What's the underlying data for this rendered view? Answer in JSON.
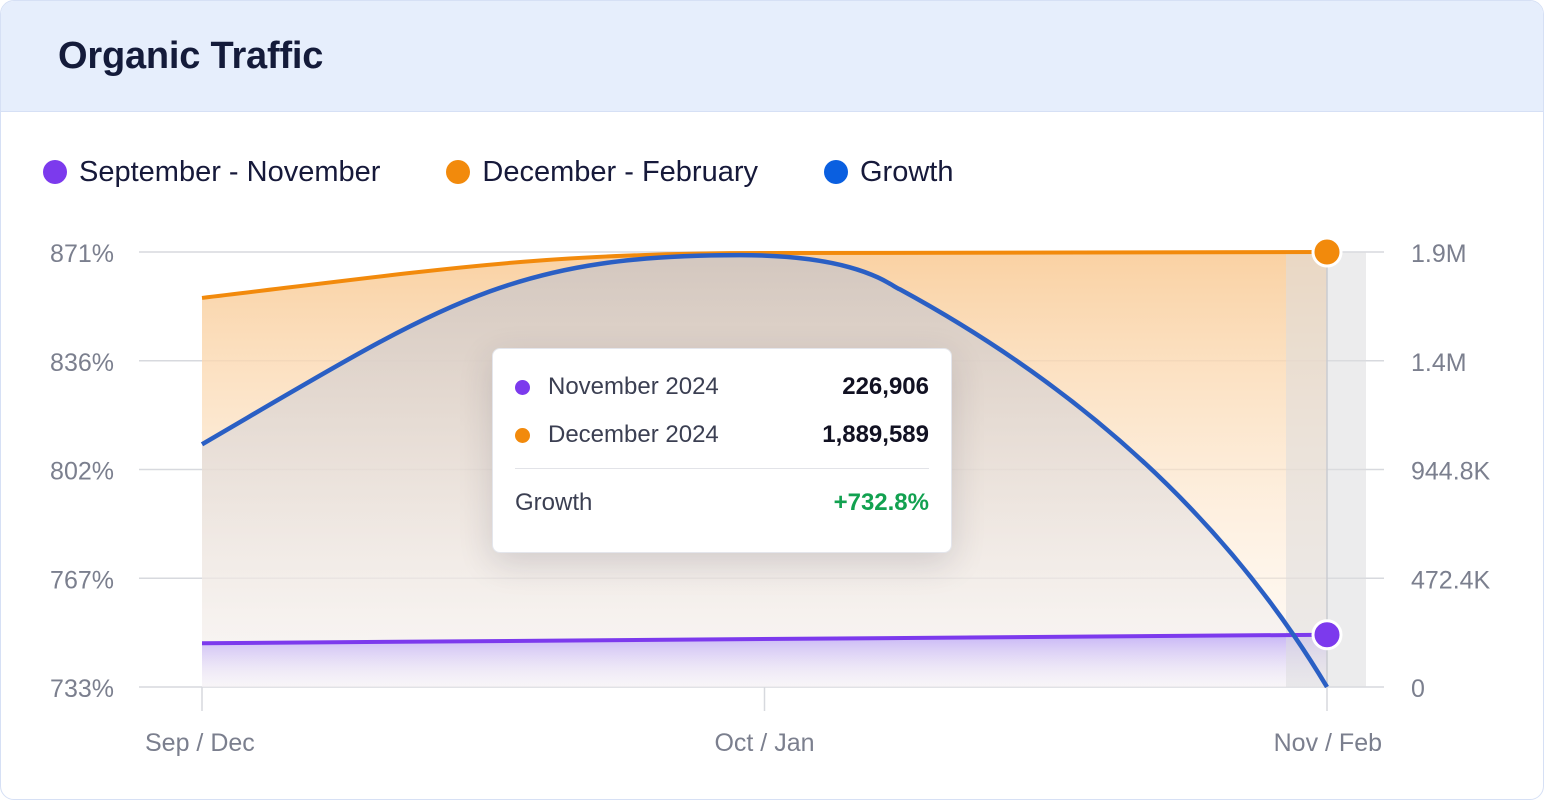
{
  "header": {
    "title": "Organic Traffic"
  },
  "legend": [
    {
      "label": "September - November",
      "color": "#7c3aed"
    },
    {
      "label": "December - February",
      "color": "#f28a0c"
    },
    {
      "label": "Growth",
      "color": "#0a5fe0"
    }
  ],
  "tooltip": {
    "rows": [
      {
        "label": "November 2024",
        "value": "226,906",
        "color": "#7c3aed"
      },
      {
        "label": "December 2024",
        "value": "1,889,589",
        "color": "#f28a0c"
      }
    ],
    "growth_label": "Growth",
    "growth_value": "+732.8%",
    "growth_color": "#12a150"
  },
  "chart_data": {
    "type": "area",
    "categories": [
      "Sep / Dec",
      "Oct / Jan",
      "Nov / Feb"
    ],
    "left_axis": {
      "ticks": [
        "871%",
        "836%",
        "802%",
        "767%",
        "733%"
      ],
      "ylim": [
        733,
        871
      ]
    },
    "right_axis": {
      "ticks": [
        "1.9M",
        "1.4M",
        "944.8K",
        "472.4K",
        "0"
      ],
      "ylim": [
        0,
        1889589
      ]
    },
    "series": [
      {
        "name": "September - November",
        "axis": "right",
        "color": "#7c3aed",
        "values": [
          190000,
          210000,
          226906
        ]
      },
      {
        "name": "December - February",
        "axis": "right",
        "color": "#f28a0c",
        "values": [
          1690000,
          1885000,
          1889589
        ]
      },
      {
        "name": "Growth",
        "axis": "left",
        "color": "#2a5fc4",
        "values": [
          810,
          870,
          733
        ]
      }
    ],
    "grid": true,
    "legend_position": "top-left"
  }
}
